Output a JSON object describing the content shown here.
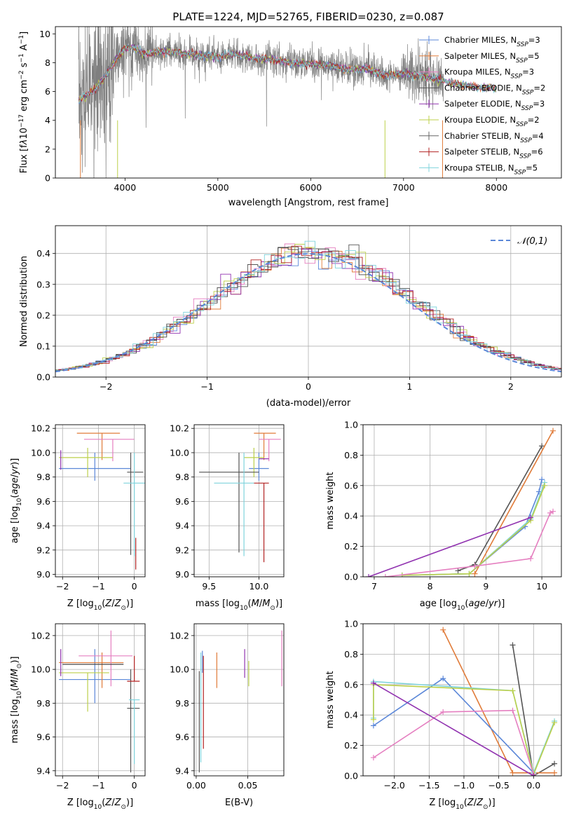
{
  "chart_data": [
    {
      "id": "spectrum",
      "type": "line",
      "title": "PLATE=1224, MJD=52765, FIBERID=0230, z=0.087",
      "xlabel": "wavelength [Angstrom, rest frame]",
      "ylabel_html": "Flux [f<tspan font-style='italic'>λ</tspan>10<tspan baseline-shift='super' font-size='9'>−17</tspan> erg cm<tspan baseline-shift='super' font-size='9'>−2</tspan> s<tspan baseline-shift='super' font-size='9'>−1</tspan> A<tspan baseline-shift='super' font-size='9'>−1</tspan>]",
      "xlim": [
        3250,
        8700
      ],
      "ylim": [
        0,
        10.5
      ],
      "xticks": [
        4000,
        5000,
        6000,
        7000,
        8000
      ],
      "yticks": [
        0,
        2,
        4,
        6,
        8,
        10
      ],
      "grid": false,
      "legend_position": "top-right",
      "legend": [
        {
          "label": "Chabrier MILES, N",
          "sub": "SSP",
          "rest": "=3",
          "color": "#5b87d8"
        },
        {
          "label": "Salpeter MILES, N",
          "sub": "SSP",
          "rest": "=5",
          "color": "#e07b39"
        },
        {
          "label": "Kroupa MILES, N",
          "sub": "SSP",
          "rest": "=3",
          "color": "#e57fc0"
        },
        {
          "label": "Chabrier ELODIE, N",
          "sub": "SSP",
          "rest": "=2",
          "color": "#555555"
        },
        {
          "label": "Salpeter ELODIE, N",
          "sub": "SSP",
          "rest": "=3",
          "color": "#9133b0"
        },
        {
          "label": "Kroupa ELODIE, N",
          "sub": "SSP",
          "rest": "=2",
          "color": "#bcd04a"
        },
        {
          "label": "Chabrier STELIB, N",
          "sub": "SSP",
          "rest": "=4",
          "color": "#666666"
        },
        {
          "label": "Salpeter STELIB, N",
          "sub": "SSP",
          "rest": "=6",
          "color": "#b22222"
        },
        {
          "label": "Kroupa STELIB, N",
          "sub": "SSP",
          "rest": "=5",
          "color": "#7fd3dc"
        }
      ],
      "continuum": {
        "x": [
          3500,
          3600,
          3700,
          3800,
          3900,
          4000,
          4100,
          4200,
          4400,
          4600,
          4800,
          5000,
          5200,
          5400,
          5600,
          5800,
          6000,
          6200,
          6400,
          6600,
          6800,
          7000,
          7200,
          7400,
          7600,
          7800,
          8000,
          8200,
          8400
        ],
        "y": [
          5.4,
          5.8,
          6.3,
          7.2,
          8.2,
          9.0,
          9.1,
          8.6,
          8.8,
          8.7,
          8.5,
          8.4,
          8.6,
          8.3,
          8.2,
          8.0,
          7.9,
          7.8,
          7.5,
          7.6,
          7.1,
          7.3,
          7.0,
          6.8,
          6.5,
          6.3,
          6.2,
          6.0,
          6.1
        ]
      }
    },
    {
      "id": "residuals",
      "type": "histogram",
      "xlabel": "(data-model)/error",
      "ylabel": "Normed distribution",
      "xlim": [
        -2.5,
        2.5
      ],
      "ylim": [
        0,
        0.49
      ],
      "xticks": [
        -2,
        -1,
        0,
        1,
        2
      ],
      "yticks": [
        0.0,
        0.1,
        0.2,
        0.3,
        0.4
      ],
      "grid": true,
      "legend_position": "top-right",
      "reference_curve": {
        "label": "𝒩(0,1)",
        "color": "#5b87d8"
      }
    },
    {
      "id": "age_vs_Z",
      "type": "errorbar",
      "xlabel": "Z [log10(Z/Z⊙)]",
      "ylabel": "age  [log10(age/yr)]",
      "xlim": [
        -2.2,
        0.3
      ],
      "ylim": [
        8.98,
        10.23
      ],
      "xticks": [
        -2,
        -1,
        0
      ],
      "yticks": [
        9.0,
        9.2,
        9.4,
        9.6,
        9.8,
        10.0,
        10.2
      ],
      "grid": true,
      "points": [
        {
          "color": "#5b87d8",
          "x": -1.1,
          "xerr": [
            1.0,
            1.0
          ],
          "y": 9.87,
          "yerr": [
            0.1,
            0.13
          ]
        },
        {
          "color": "#e07b39",
          "x": -0.9,
          "xerr": [
            0.7,
            0.5
          ],
          "y": 10.16,
          "yerr": [
            0.22,
            0.0
          ]
        },
        {
          "color": "#e57fc0",
          "x": -0.6,
          "xerr": [
            0.8,
            0.6
          ],
          "y": 10.11,
          "yerr": [
            0.18,
            0.0
          ]
        },
        {
          "color": "#bcd04a",
          "x": -1.3,
          "xerr": [
            0.8,
            0.7
          ],
          "y": 9.96,
          "yerr": [
            0.16,
            0.08
          ]
        },
        {
          "color": "#555555",
          "x": -0.1,
          "xerr": [
            0.1,
            0.35
          ],
          "y": 9.84,
          "yerr": [
            0.68,
            0.16
          ]
        },
        {
          "color": "#b22222",
          "x": 0.04,
          "xerr": [
            0.0,
            0.0
          ],
          "y": 9.1,
          "yerr": [
            0.06,
            0.2
          ]
        },
        {
          "color": "#7fd3dc",
          "x": 0.0,
          "xerr": [
            0.3,
            0.3
          ],
          "y": 9.75,
          "yerr": [
            0.6,
            0.25
          ]
        },
        {
          "color": "#9133b0",
          "x": -2.05,
          "xerr": [
            0.0,
            0.0
          ],
          "y": 9.96,
          "yerr": [
            0.1,
            0.06
          ]
        }
      ]
    },
    {
      "id": "age_vs_mass",
      "type": "errorbar",
      "xlabel": "mass [log10(M/M⊙)]",
      "ylabel": "",
      "xlim": [
        9.35,
        10.25
      ],
      "ylim": [
        8.98,
        10.23
      ],
      "xticks": [
        9.5,
        10.0
      ],
      "yticks": [
        9.0,
        9.2,
        9.4,
        9.6,
        9.8,
        10.0,
        10.2
      ],
      "grid": true,
      "points": [
        {
          "color": "#5b87d8",
          "x": 10.0,
          "xerr": [
            0.1,
            0.1
          ],
          "y": 9.87,
          "yerr": [
            0.1,
            0.13
          ]
        },
        {
          "color": "#e07b39",
          "x": 10.05,
          "xerr": [
            0.1,
            0.12
          ],
          "y": 10.16,
          "yerr": [
            0.22,
            0.0
          ]
        },
        {
          "color": "#e57fc0",
          "x": 10.1,
          "xerr": [
            0.1,
            0.12
          ],
          "y": 10.11,
          "yerr": [
            0.18,
            0.0
          ]
        },
        {
          "color": "#bcd04a",
          "x": 9.95,
          "xerr": [
            0.1,
            0.1
          ],
          "y": 9.96,
          "yerr": [
            0.16,
            0.08
          ]
        },
        {
          "color": "#555555",
          "x": 9.8,
          "xerr": [
            0.4,
            0.2
          ],
          "y": 9.84,
          "yerr": [
            0.66,
            0.16
          ]
        },
        {
          "color": "#b22222",
          "x": 10.05,
          "xerr": [
            0.1,
            0.05
          ],
          "y": 9.75,
          "yerr": [
            0.65,
            0.0
          ]
        },
        {
          "color": "#7fd3dc",
          "x": 9.85,
          "xerr": [
            0.3,
            0.1
          ],
          "y": 9.75,
          "yerr": [
            0.6,
            0.25
          ]
        },
        {
          "color": "#9133b0",
          "x": 10.05,
          "xerr": [
            0.05,
            0.05
          ],
          "y": 9.95,
          "yerr": [
            0.0,
            0.0
          ]
        }
      ]
    },
    {
      "id": "mw_vs_age",
      "type": "line",
      "xlabel": "age  [log10(age/yr)]",
      "ylabel": "mass weight",
      "xlim": [
        6.8,
        10.35
      ],
      "ylim": [
        0,
        1.0
      ],
      "xticks": [
        7,
        8,
        9,
        10
      ],
      "yticks": [
        0.0,
        0.2,
        0.4,
        0.6,
        0.8,
        1.0
      ],
      "grid": true,
      "series": [
        {
          "color": "#555555",
          "x": [
            8.5,
            8.8,
            10.0
          ],
          "y": [
            0.04,
            0.08,
            0.86
          ]
        },
        {
          "color": "#e07b39",
          "x": [
            8.8,
            10.2
          ],
          "y": [
            0.02,
            0.96
          ]
        },
        {
          "color": "#5b87d8",
          "x": [
            7.5,
            8.7,
            9.7,
            9.95,
            10.0
          ],
          "y": [
            0.01,
            0.02,
            0.33,
            0.56,
            0.64
          ]
        },
        {
          "color": "#7fd3dc",
          "x": [
            7.5,
            8.7,
            9.8,
            10.05
          ],
          "y": [
            0.01,
            0.02,
            0.38,
            0.62
          ]
        },
        {
          "color": "#bcd04a",
          "x": [
            7.5,
            8.7,
            9.8,
            10.05
          ],
          "y": [
            0.01,
            0.02,
            0.37,
            0.6
          ]
        },
        {
          "color": "#e57fc0",
          "x": [
            7.2,
            8.8,
            9.8,
            10.15,
            10.2
          ],
          "y": [
            0.0,
            0.07,
            0.12,
            0.42,
            0.43
          ]
        },
        {
          "color": "#9133b0",
          "x": [
            6.9,
            9.8
          ],
          "y": [
            0.0,
            0.39
          ]
        }
      ]
    },
    {
      "id": "mass_vs_Z",
      "type": "errorbar",
      "xlabel": "Z [log10(Z/Z⊙)]",
      "ylabel": "mass [log10(M/M⊙)]",
      "xlim": [
        -2.2,
        0.3
      ],
      "ylim": [
        9.37,
        10.27
      ],
      "xticks": [
        -2,
        -1,
        0
      ],
      "yticks": [
        9.4,
        9.6,
        9.8,
        10.0,
        10.2
      ],
      "grid": true,
      "points": [
        {
          "color": "#5b87d8",
          "x": -1.1,
          "xerr": [
            1.0,
            1.0
          ],
          "y": 9.94,
          "yerr": [
            0.14,
            0.18
          ]
        },
        {
          "color": "#e07b39",
          "x": -0.9,
          "xerr": [
            1.2,
            0.6
          ],
          "y": 10.04,
          "yerr": [
            0.15,
            0.06
          ]
        },
        {
          "color": "#e57fc0",
          "x": -0.65,
          "xerr": [
            0.9,
            0.6
          ],
          "y": 10.08,
          "yerr": [
            0.18,
            0.15
          ]
        },
        {
          "color": "#bcd04a",
          "x": -1.3,
          "xerr": [
            0.8,
            0.6
          ],
          "y": 9.98,
          "yerr": [
            0.23,
            0.0
          ]
        },
        {
          "color": "#555555",
          "x": -0.1,
          "xerr": [
            0.1,
            0.25
          ],
          "y": 9.77,
          "yerr": [
            0.38,
            0.23
          ]
        },
        {
          "color": "#b22222",
          "x": 0.0,
          "xerr": [
            0.2,
            0.15
          ],
          "y": 9.93,
          "yerr": [
            0.0,
            0.15
          ]
        },
        {
          "color": "#7fd3dc",
          "x": 0.0,
          "xerr": [
            0.15,
            0.15
          ],
          "y": 9.82,
          "yerr": [
            0.38,
            0.0
          ]
        },
        {
          "color": "#9133b0",
          "x": -2.05,
          "xerr": [
            0.0,
            0.0
          ],
          "y": 10.06,
          "yerr": [
            0.1,
            0.06
          ]
        },
        {
          "color": "#444444",
          "x": -0.9,
          "xerr": [
            1.1,
            0.6
          ],
          "y": 10.03,
          "yerr": [
            0.0,
            0.0
          ]
        }
      ]
    },
    {
      "id": "mass_vs_EBV",
      "type": "errorbar",
      "xlabel": "E(B-V)",
      "ylabel": "",
      "xlim": [
        -0.002,
        0.085
      ],
      "ylim": [
        9.37,
        10.27
      ],
      "xticks": [
        0.0,
        0.05
      ],
      "yticks": [
        9.4,
        9.6,
        9.8,
        10.0,
        10.2
      ],
      "grid": true,
      "points": [
        {
          "color": "#555555",
          "x": 0.003,
          "xerr": [
            0.0,
            0.0
          ],
          "y": 9.69,
          "yerr": [
            0.3,
            0.3
          ]
        },
        {
          "color": "#7fd3dc",
          "x": 0.0045,
          "xerr": [
            0.0,
            0.0
          ],
          "y": 9.75,
          "yerr": [
            0.3,
            0.35
          ]
        },
        {
          "color": "#b22222",
          "x": 0.007,
          "xerr": [
            0.0,
            0.0
          ],
          "y": 9.8,
          "yerr": [
            0.27,
            0.28
          ]
        },
        {
          "color": "#5b87d8",
          "x": 0.006,
          "xerr": [
            0.0,
            0.0
          ],
          "y": 9.98,
          "yerr": [
            0.0,
            0.13
          ]
        },
        {
          "color": "#e07b39",
          "x": 0.02,
          "xerr": [
            0.0,
            0.0
          ],
          "y": 9.99,
          "yerr": [
            0.1,
            0.11
          ]
        },
        {
          "color": "#9133b0",
          "x": 0.047,
          "xerr": [
            0.0,
            0.0
          ],
          "y": 10.05,
          "yerr": [
            0.1,
            0.07
          ]
        },
        {
          "color": "#bcd04a",
          "x": 0.051,
          "xerr": [
            0.0,
            0.0
          ],
          "y": 9.99,
          "yerr": [
            0.09,
            0.06
          ]
        },
        {
          "color": "#e57fc0",
          "x": 0.083,
          "xerr": [
            0.0,
            0.0
          ],
          "y": 10.06,
          "yerr": [
            0.16,
            0.17
          ]
        }
      ]
    },
    {
      "id": "mw_vs_Z",
      "type": "line",
      "xlabel": "Z [log10(Z/Z⊙)]",
      "ylabel": "mass weight",
      "xlim": [
        -2.45,
        0.4
      ],
      "ylim": [
        0,
        1.0
      ],
      "xticks": [
        -2.0,
        -1.5,
        -1.0,
        -0.5,
        0.0
      ],
      "yticks": [
        0.0,
        0.2,
        0.4,
        0.6,
        0.8,
        1.0
      ],
      "grid": true,
      "series": [
        {
          "color": "#555555",
          "x": [
            -0.3,
            0.0,
            0.3
          ],
          "y": [
            0.86,
            0.0,
            0.08
          ]
        },
        {
          "color": "#e07b39",
          "x": [
            -1.3,
            -0.3,
            0.3
          ],
          "y": [
            0.96,
            0.02,
            0.02
          ]
        },
        {
          "color": "#5b87d8",
          "x": [
            -2.3,
            -1.3,
            0.0
          ],
          "y": [
            0.33,
            0.64,
            0.02
          ]
        },
        {
          "color": "#7fd3dc",
          "x": [
            -2.3,
            -2.3,
            -0.3,
            0.0,
            0.3
          ],
          "y": [
            0.38,
            0.62,
            0.56,
            0.02,
            0.36
          ]
        },
        {
          "color": "#bcd04a",
          "x": [
            -2.3,
            -2.3,
            -0.3,
            0.0,
            0.3
          ],
          "y": [
            0.37,
            0.6,
            0.56,
            0.01,
            0.35
          ]
        },
        {
          "color": "#e57fc0",
          "x": [
            -2.3,
            -1.3,
            -0.3,
            0.0
          ],
          "y": [
            0.12,
            0.42,
            0.43,
            0.01
          ]
        },
        {
          "color": "#9133b0",
          "x": [
            -2.3,
            0.0
          ],
          "y": [
            0.61,
            0.0
          ]
        }
      ]
    }
  ]
}
